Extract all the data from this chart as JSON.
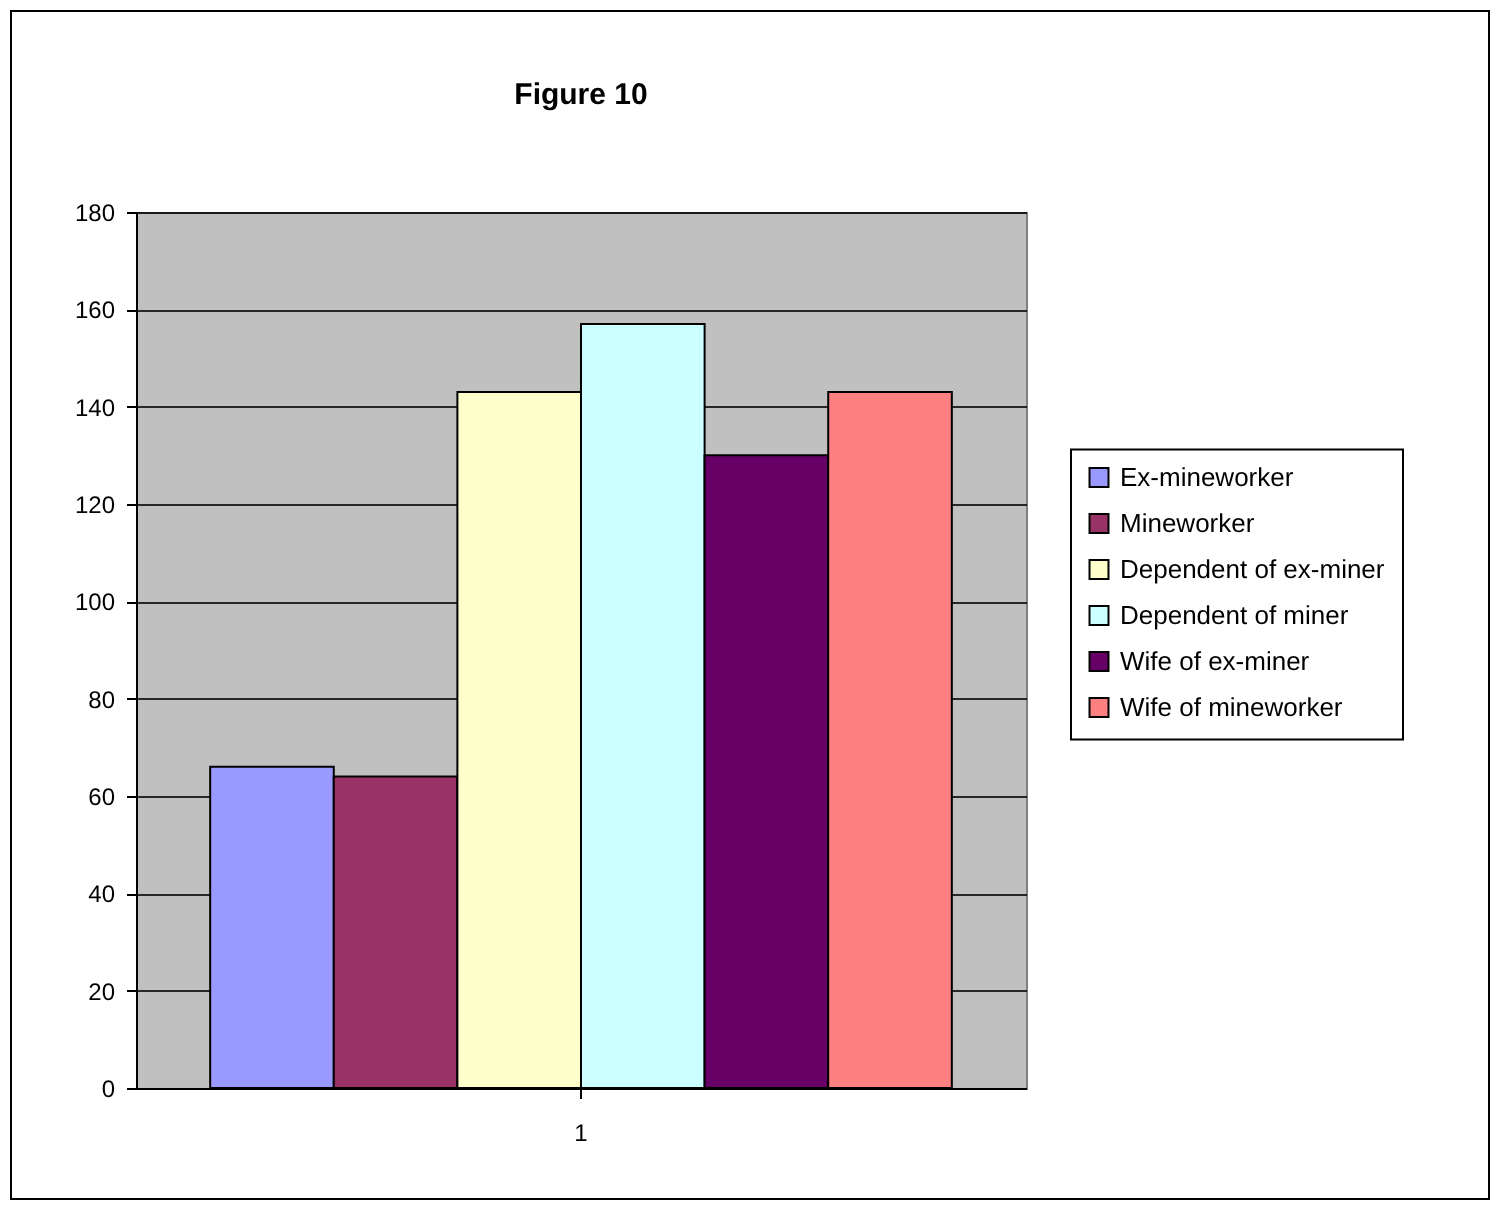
{
  "chart_data": {
    "type": "bar",
    "title": "Figure 10",
    "categories": [
      "1"
    ],
    "series": [
      {
        "name": "Ex-mineworker",
        "color": "#9999ff",
        "values": [
          66
        ]
      },
      {
        "name": "Mineworker",
        "color": "#993366",
        "values": [
          64
        ]
      },
      {
        "name": "Dependent of ex-miner",
        "color": "#ffffcc",
        "values": [
          143
        ]
      },
      {
        "name": "Dependent of miner",
        "color": "#ccffff",
        "values": [
          157
        ]
      },
      {
        "name": "Wife of ex-miner",
        "color": "#660066",
        "values": [
          130
        ]
      },
      {
        "name": "Wife of mineworker",
        "color": "#ff8080",
        "values": [
          143
        ]
      }
    ],
    "ylim": [
      0,
      180
    ],
    "yticks": [
      0,
      20,
      40,
      60,
      80,
      100,
      120,
      140,
      160,
      180
    ],
    "grid": "y",
    "legend": "right"
  }
}
